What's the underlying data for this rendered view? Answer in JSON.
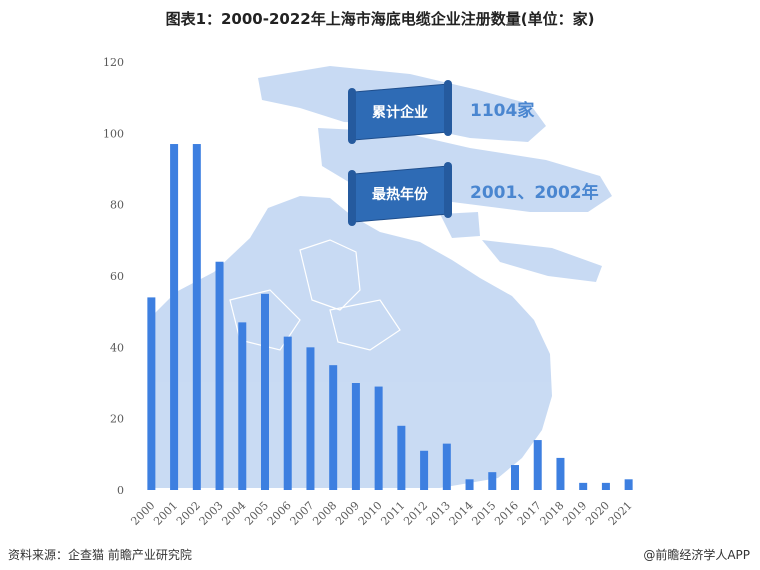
{
  "title": "图表1：2000-2022年上海市海底电缆企业注册数量(单位：家)",
  "source": "资料来源：企查猫 前瞻产业研究院",
  "brand": "@前瞻经济学人APP",
  "colors": {
    "bar": "#3D7FE0",
    "map": "#C3D7F2",
    "scroll": "#2E6BB5",
    "accent": "#4A86D0"
  },
  "callouts": [
    {
      "label": "累计企业",
      "value": "1104家"
    },
    {
      "label": "最热年份",
      "value": "2001、2002年"
    }
  ],
  "chart_data": {
    "type": "bar",
    "title": "图表1：2000-2022年上海市海底电缆企业注册数量(单位：家)",
    "xlabel": "",
    "ylabel": "",
    "ylim": [
      0,
      120
    ],
    "yticks": [
      0,
      20,
      40,
      60,
      80,
      100,
      120
    ],
    "grid": false,
    "categories": [
      "2000",
      "2001",
      "2002",
      "2003",
      "2004",
      "2005",
      "2006",
      "2007",
      "2008",
      "2009",
      "2010",
      "2011",
      "2012",
      "2013",
      "2014",
      "2015",
      "2016",
      "2017",
      "2018",
      "2019",
      "2020",
      "2021"
    ],
    "values": [
      54,
      97,
      97,
      64,
      47,
      55,
      43,
      40,
      35,
      30,
      29,
      18,
      11,
      13,
      3,
      5,
      7,
      14,
      9,
      2,
      2,
      3
    ]
  }
}
